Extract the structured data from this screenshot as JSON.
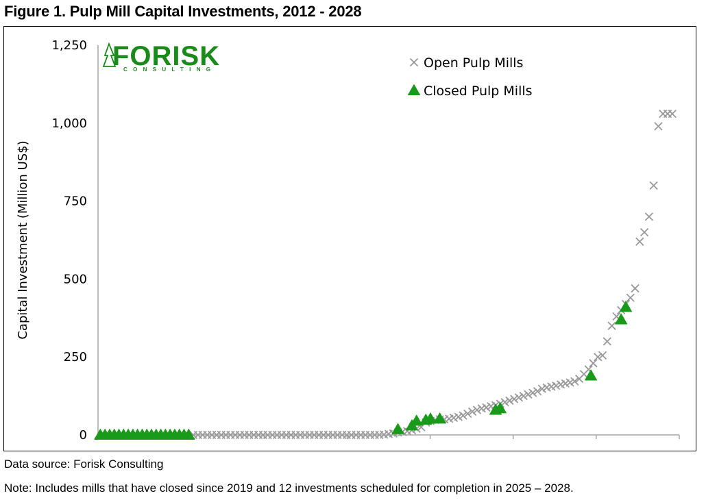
{
  "figure_title": "Figure 1. Pulp Mill Capital Investments, 2012 - 2028",
  "logo": {
    "brand": "FORISK",
    "subtitle": "CONSULTING",
    "color": "#1a8a1a"
  },
  "footnotes": {
    "source": "Data source: Forisk Consulting",
    "note": "Note: Includes mills that have closed since 2019 and 12 investments scheduled for completion in 2025 – 2028."
  },
  "chart_data": {
    "type": "scatter",
    "title": "",
    "xlabel": "",
    "ylabel": "Capital Investment (Million US$)",
    "ylim": [
      0,
      1250
    ],
    "yticks": [
      0,
      250,
      500,
      750,
      1000,
      1250
    ],
    "ytick_labels": [
      "0",
      "250",
      "500",
      "750",
      "1,000",
      "1,250"
    ],
    "xlim": [
      0,
      250
    ],
    "x_tick_labels_shown": false,
    "grid": false,
    "legend_position": "top-right",
    "series": [
      {
        "name": "Open Pulp Mills",
        "marker": "x",
        "color": "#999999",
        "x": [
          41,
          43,
          45,
          47,
          49,
          51,
          53,
          55,
          57,
          59,
          61,
          63,
          65,
          67,
          69,
          71,
          73,
          75,
          77,
          79,
          81,
          83,
          85,
          87,
          89,
          91,
          93,
          95,
          97,
          99,
          101,
          103,
          105,
          107,
          109,
          111,
          113,
          115,
          117,
          119,
          121,
          123,
          125,
          127,
          129,
          131,
          133,
          135,
          137,
          139,
          141,
          143,
          145,
          147,
          149,
          151,
          153,
          155,
          157,
          159,
          161,
          163,
          165,
          167,
          169,
          171,
          173,
          175,
          177,
          179,
          181,
          183,
          185,
          187,
          189,
          191,
          193,
          195,
          197,
          199,
          201,
          203,
          205,
          207,
          209,
          211,
          213,
          215,
          217,
          219,
          221,
          223,
          225,
          227,
          229,
          231,
          233,
          235,
          237,
          239,
          241,
          243,
          245,
          247
        ],
        "y": [
          0,
          0,
          0,
          0,
          0,
          0,
          0,
          0,
          0,
          0,
          0,
          0,
          0,
          0,
          0,
          0,
          0,
          0,
          0,
          0,
          0,
          0,
          0,
          0,
          0,
          0,
          0,
          0,
          0,
          0,
          0,
          0,
          0,
          0,
          0,
          0,
          0,
          0,
          0,
          0,
          0,
          1,
          3,
          5,
          8,
          10,
          12,
          15,
          20,
          25,
          40,
          45,
          48,
          50,
          50,
          52,
          55,
          58,
          62,
          68,
          75,
          80,
          85,
          88,
          92,
          95,
          100,
          105,
          110,
          115,
          120,
          125,
          130,
          135,
          140,
          148,
          152,
          155,
          158,
          162,
          165,
          168,
          172,
          180,
          195,
          210,
          230,
          250,
          255,
          300,
          350,
          380,
          400,
          420,
          440,
          470,
          620,
          650,
          700,
          800,
          990,
          1030,
          1030,
          1030
        ]
      },
      {
        "name": "Closed Pulp Mills",
        "marker": "triangle",
        "color": "#1a9a1a",
        "x": [
          1,
          3,
          5,
          7,
          9,
          11,
          13,
          15,
          17,
          19,
          21,
          23,
          25,
          27,
          29,
          31,
          33,
          35,
          37,
          39,
          129,
          135,
          137,
          141,
          143,
          147,
          171,
          173,
          212,
          225,
          227
        ],
        "y": [
          0,
          0,
          0,
          0,
          0,
          0,
          0,
          0,
          0,
          0,
          0,
          0,
          0,
          0,
          0,
          0,
          0,
          0,
          0,
          0,
          18,
          30,
          45,
          48,
          52,
          52,
          80,
          85,
          190,
          370,
          410
        ]
      }
    ]
  }
}
